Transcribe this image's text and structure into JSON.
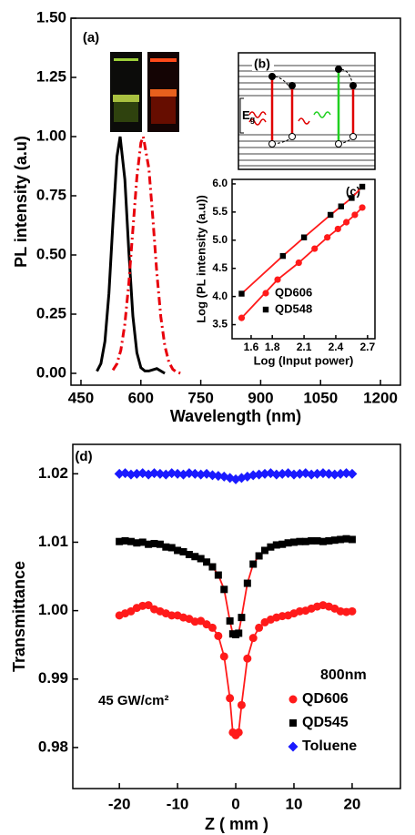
{
  "chart_data": [
    {
      "type": "line",
      "panel_label": "(a)",
      "x_label": "Wavelength (nm)",
      "y_label": "PL intensity (a.u)",
      "xlim": [
        425,
        1250
      ],
      "ylim": [
        -0.05,
        1.5
      ],
      "xticks": [
        450,
        600,
        750,
        900,
        1050,
        1200
      ],
      "yticks": [
        {
          "value": 0,
          "label": "0.00"
        },
        {
          "value": 0.25,
          "label": "0.25"
        },
        {
          "value": 0.5,
          "label": "0.50"
        },
        {
          "value": 0.75,
          "label": "0.75"
        },
        {
          "value": 1,
          "label": "1.00"
        },
        {
          "value": 1.25,
          "label": "1.25"
        },
        {
          "value": 1.5,
          "label": "1.50"
        }
      ],
      "series": [
        {
          "color": "#000000",
          "dash": "solid",
          "x": [
            490,
            500,
            510,
            520,
            530,
            540,
            548,
            560,
            570,
            580,
            590,
            600,
            610,
            620,
            640,
            660
          ],
          "values": [
            0.009,
            0.041,
            0.135,
            0.338,
            0.638,
            0.915,
            1.0,
            0.819,
            0.512,
            0.242,
            0.087,
            0.024,
            0.01,
            0.01,
            0.02,
            0.0
          ]
        },
        {
          "color": "#e8000b",
          "dash": "dashdot",
          "x": [
            530,
            540,
            550,
            560,
            570,
            580,
            590,
            600,
            606,
            620,
            630,
            640,
            650,
            660,
            670,
            680,
            690,
            700
          ],
          "values": [
            0.014,
            0.04,
            0.098,
            0.209,
            0.383,
            0.607,
            0.828,
            0.974,
            1.0,
            0.865,
            0.653,
            0.425,
            0.239,
            0.116,
            0.048,
            0.017,
            0.005,
            0.0
          ]
        }
      ]
    },
    {
      "type": "scatter",
      "panel_label": "(c)",
      "x_label": "Log (Input power)",
      "y_label": "Log (PL intensity (a.u))",
      "xlim": [
        1.42,
        2.77
      ],
      "ylim": [
        3.25,
        6.08
      ],
      "xticks": [
        1.6,
        1.8,
        2.1,
        2.4,
        2.7
      ],
      "yticks": [
        3.5,
        {
          "value": 4,
          "label": "4.0"
        },
        4.5,
        {
          "value": 5,
          "label": "5.0"
        },
        5.5,
        {
          "value": 6,
          "label": "6.0"
        }
      ],
      "legend": "lower right",
      "series": [
        {
          "name": "QD606",
          "color": "#ff1a1a",
          "marker": "circle",
          "line_color": "#ff1a1a",
          "x": [
            1.51,
            1.85,
            2.05,
            2.2,
            2.32,
            2.42,
            2.5,
            2.58,
            2.65
          ],
          "values": [
            3.62,
            4.3,
            4.6,
            4.85,
            5.05,
            5.2,
            5.32,
            5.45,
            5.58
          ]
        },
        {
          "name": "QD548",
          "color": "#000000",
          "marker": "square",
          "line_color": "#ff1a1a",
          "x": [
            1.51,
            1.9,
            2.1,
            2.35,
            2.45,
            2.55,
            2.65
          ],
          "values": [
            4.05,
            4.72,
            5.05,
            5.45,
            5.6,
            5.75,
            5.95
          ]
        }
      ]
    },
    {
      "type": "scatter",
      "panel_label": "(d)",
      "x_label": "Z ( mm )",
      "y_label": "Transmittance",
      "annotation": "45 GW/cm²",
      "legend_title": "800nm",
      "legend": "lower right",
      "xlim": [
        -28,
        28.3
      ],
      "ylim": [
        0.974,
        1.0243
      ],
      "xticks": [
        -20,
        -10,
        0,
        10,
        20
      ],
      "yticks": [
        0.98,
        0.99,
        {
          "value": 1,
          "label": "1.00"
        },
        1.01,
        1.02
      ],
      "series": [
        {
          "name": "QD606",
          "color": "#ff1a1a",
          "marker": "circle",
          "line_color": "#ff1a1a",
          "x": [
            -20,
            -19,
            -18,
            -17,
            -16,
            -15,
            -14,
            -13,
            -12,
            -11,
            -10,
            -9,
            -8,
            -7,
            -6,
            -5,
            -4,
            -3,
            -2,
            -1,
            -0.5,
            0,
            0.5,
            1,
            2,
            3,
            4,
            5,
            6,
            7,
            8,
            9,
            10,
            11,
            12,
            13,
            14,
            15,
            16,
            17,
            18,
            19,
            20
          ],
          "values": [
            0.9993,
            0.9996,
            0.9999,
            1.0004,
            1.0007,
            1.0008,
            1.0002,
            0.9999,
            0.9996,
            0.9993,
            0.9993,
            0.999,
            0.9988,
            0.9984,
            0.9985,
            0.998,
            0.9975,
            0.9963,
            0.9933,
            0.9872,
            0.9822,
            0.9818,
            0.9822,
            0.9862,
            0.993,
            0.996,
            0.9975,
            0.9983,
            0.9987,
            0.999,
            0.9992,
            0.9993,
            0.9996,
            0.9999,
            1.0,
            1.0003,
            1.0006,
            1.0008,
            1.0006,
            1.0003,
            0.9999,
            0.9998,
            0.9999
          ]
        },
        {
          "name": "QD545",
          "color": "#000000",
          "marker": "square",
          "line_color": "#ff1a1a",
          "x": [
            -20,
            -19,
            -18,
            -17,
            -16,
            -15,
            -14,
            -13,
            -12,
            -11,
            -10,
            -9,
            -8,
            -7,
            -6,
            -5,
            -4,
            -3,
            -2,
            -1,
            -0.5,
            0,
            0.5,
            1,
            2,
            3,
            4,
            5,
            6,
            7,
            8,
            9,
            10,
            11,
            12,
            13,
            14,
            15,
            16,
            17,
            18,
            19,
            20
          ],
          "values": [
            1.0101,
            1.0102,
            1.0101,
            1.0099,
            1.01,
            1.0097,
            1.0098,
            1.0097,
            1.0093,
            1.0092,
            1.0088,
            1.0086,
            1.0082,
            1.0079,
            1.0076,
            1.0071,
            1.0064,
            1.0052,
            1.0031,
            0.9985,
            0.9966,
            0.9965,
            0.9967,
            0.999,
            1.004,
            1.0068,
            1.008,
            1.0088,
            1.0093,
            1.0096,
            1.0097,
            1.0099,
            1.01,
            1.0101,
            1.0101,
            1.0102,
            1.0102,
            1.0101,
            1.0102,
            1.0103,
            1.0104,
            1.0105,
            1.0104
          ]
        },
        {
          "name": "Toluene",
          "color": "#1a1aff",
          "marker": "diamond",
          "x": [
            -20,
            -19,
            -18,
            -17,
            -16,
            -15,
            -14,
            -13,
            -12,
            -11,
            -10,
            -9,
            -8,
            -7,
            -6,
            -5,
            -4,
            -3,
            -2,
            -1,
            0,
            1,
            2,
            3,
            4,
            5,
            6,
            7,
            8,
            9,
            10,
            11,
            12,
            13,
            14,
            15,
            16,
            17,
            18,
            19,
            20
          ],
          "values": [
            1.02,
            1.0201,
            1.0199,
            1.02,
            1.0201,
            1.0199,
            1.0201,
            1.02,
            1.0199,
            1.0201,
            1.02,
            1.0199,
            1.0201,
            1.02,
            1.0199,
            1.02,
            1.0198,
            1.0197,
            1.0196,
            1.0194,
            1.0192,
            1.0194,
            1.0196,
            1.0198,
            1.0199,
            1.02,
            1.0201,
            1.0199,
            1.02,
            1.0201,
            1.0199,
            1.02,
            1.0201,
            1.0199,
            1.02,
            1.0201,
            1.02,
            1.0199,
            1.02,
            1.0201,
            1.02
          ]
        }
      ]
    }
  ],
  "diagram": {
    "label": "(b)",
    "gap_symbol": "E",
    "gap_subscript": "g"
  }
}
